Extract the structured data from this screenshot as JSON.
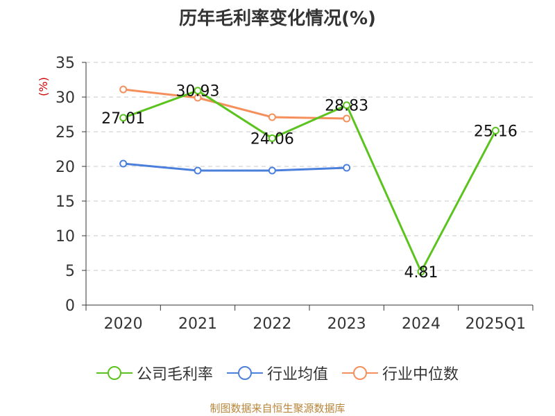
{
  "chart_data": {
    "type": "line",
    "title": "历年毛利率变化情况(%)",
    "ylabel": "(%)",
    "categories": [
      "2020",
      "2021",
      "2022",
      "2023",
      "2024",
      "2025Q1"
    ],
    "ylim": [
      0,
      35
    ],
    "yticks": [
      0,
      5,
      10,
      15,
      20,
      25,
      30,
      35
    ],
    "grid": true,
    "legend_position": "bottom",
    "series": [
      {
        "name": "公司毛利率",
        "color": "#5ac31e",
        "values": [
          27.01,
          30.93,
          24.06,
          28.83,
          4.81,
          25.16
        ],
        "labels": [
          "27.01",
          "30.93",
          "24.06",
          "28.83",
          "4.81",
          "25.16"
        ]
      },
      {
        "name": "行业均值",
        "color": "#4a7fdc",
        "values": [
          20.4,
          19.4,
          19.4,
          19.8,
          null,
          null
        ]
      },
      {
        "name": "行业中位数",
        "color": "#f58f5c",
        "values": [
          31.1,
          29.9,
          27.1,
          26.9,
          null,
          null
        ]
      }
    ]
  },
  "source": "制图数据来自恒生聚源数据库"
}
